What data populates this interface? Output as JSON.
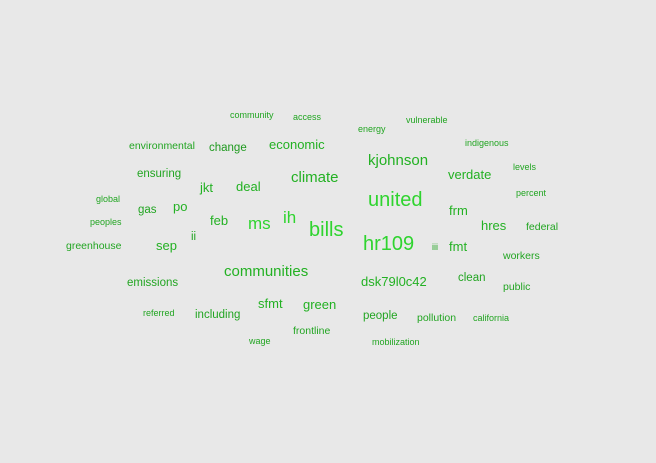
{
  "word_cloud": {
    "words": [
      "community",
      "access",
      "vulnerable",
      "energy",
      "indigenous",
      "environmental",
      "change",
      "economic",
      "kjohnson",
      "levels",
      "ensuring",
      "climate",
      "verdate",
      "jkt",
      "deal",
      "percent",
      "global",
      "gas",
      "po",
      "united",
      "frm",
      "feb",
      "ms",
      "ih",
      "bills",
      "hres",
      "federal",
      "peoples",
      "ii",
      "sep",
      "hr109",
      "iii",
      "fmt",
      "greenhouse",
      "workers",
      "communities",
      "clean",
      "emissions",
      "dsk79l0c42",
      "public",
      "sfmt",
      "green",
      "referred",
      "including",
      "people",
      "pollution",
      "california",
      "frontline",
      "wage",
      "mobilization"
    ]
  }
}
